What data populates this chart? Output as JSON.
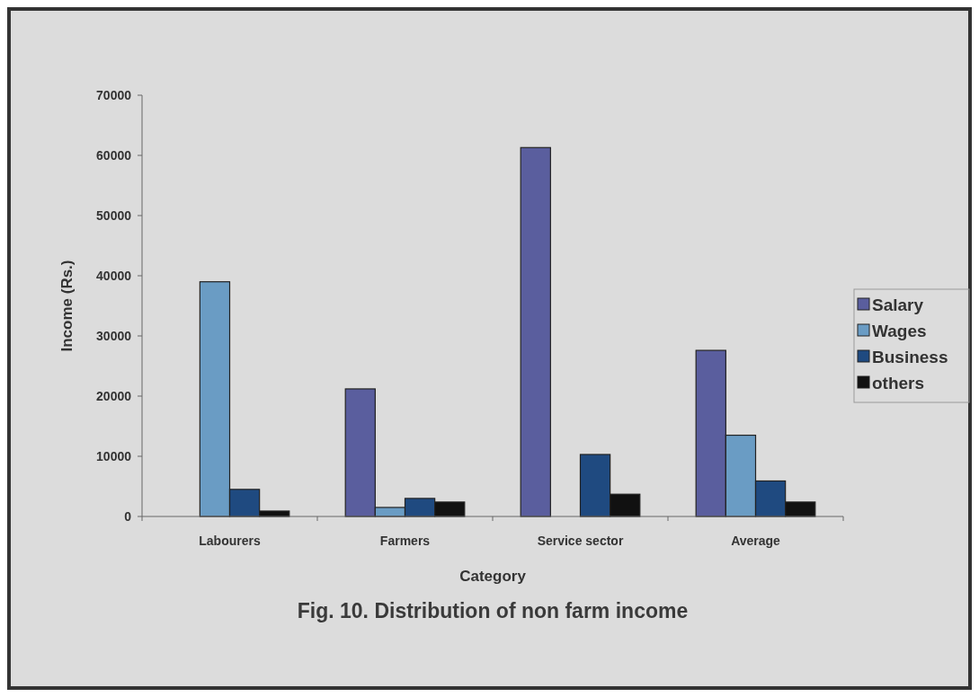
{
  "chart_data": {
    "type": "bar",
    "title": "Fig. 10. Distribution of non farm income",
    "xlabel": "Category",
    "ylabel": "Income (Rs.)",
    "categories": [
      "Labourers",
      "Farmers",
      "Service sector",
      "Average"
    ],
    "series": [
      {
        "name": "Salary",
        "color": "#5a5e9e",
        "values": [
          null,
          21200,
          61300,
          27600
        ]
      },
      {
        "name": "Wages",
        "color": "#6a9cc4",
        "values": [
          39000,
          1500,
          null,
          13500
        ]
      },
      {
        "name": "Business",
        "color": "#1f4a80",
        "values": [
          4500,
          3000,
          10300,
          5900
        ]
      },
      {
        "name": "others",
        "color": "#111111",
        "values": [
          900,
          2400,
          3700,
          2400
        ]
      }
    ],
    "ylim": [
      0,
      70000
    ],
    "yticks": [
      0,
      10000,
      20000,
      30000,
      40000,
      50000,
      60000,
      70000
    ],
    "legend": "right"
  }
}
